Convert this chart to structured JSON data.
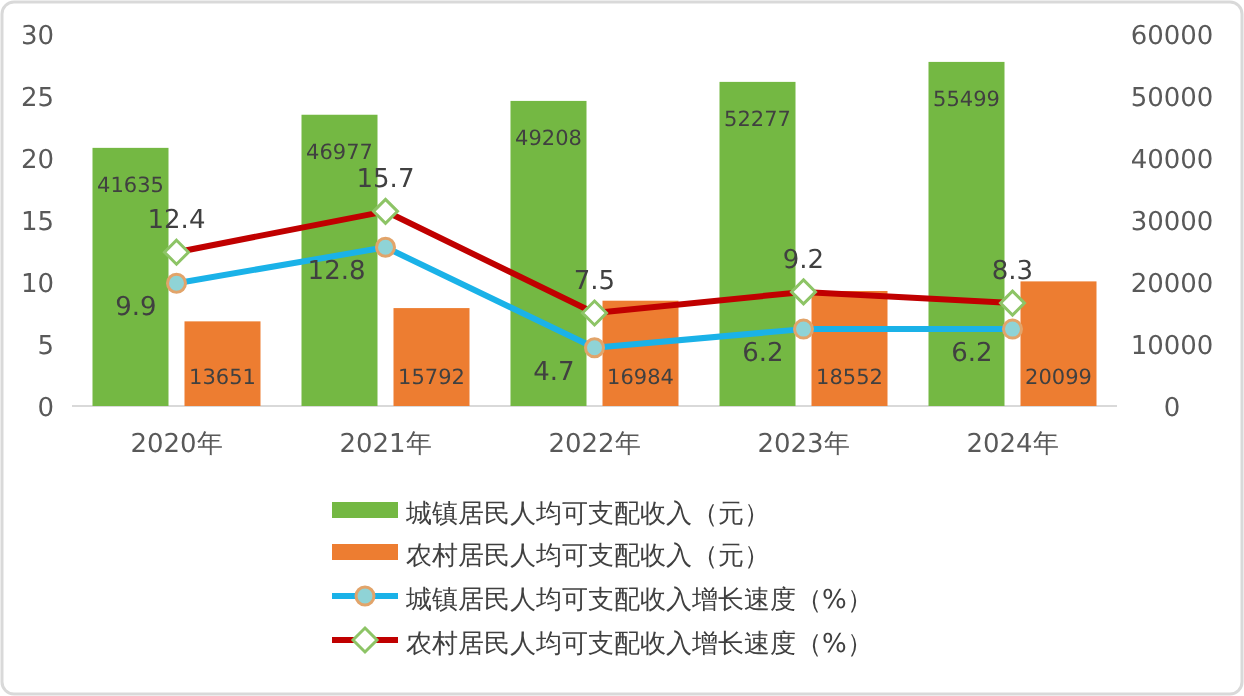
{
  "chart_data": {
    "type": "bar",
    "categories": [
      "2020年",
      "2021年",
      "2022年",
      "2023年",
      "2024年"
    ],
    "series": [
      {
        "name": "城镇居民人均可支配收入（元）",
        "color": "#74b843",
        "values": [
          41635,
          46977,
          49208,
          52277,
          55499
        ],
        "axis": "y2"
      },
      {
        "name": "农村居民人均可支配收入（元）",
        "color": "#ed7d31",
        "values": [
          13651,
          15792,
          16984,
          18552,
          20099
        ],
        "axis": "y2"
      },
      {
        "name": "城镇居民人均可支配收入增长速度（%）",
        "type": "line",
        "color": "#1ab2e8",
        "values": [
          9.9,
          12.8,
          4.7,
          6.2,
          6.2
        ],
        "marker": "circle"
      },
      {
        "name": "农村居民人均可支配收入增长速度（%）",
        "type": "line",
        "color": "#c00000",
        "values": [
          12.4,
          15.7,
          7.5,
          9.2,
          8.3
        ],
        "marker": "diamond"
      }
    ],
    "ylim": [
      0,
      30
    ],
    "yticks": [
      0,
      5,
      10,
      15,
      20,
      25,
      30
    ],
    "y2lim": [
      0,
      60000
    ],
    "y2ticks": [
      0,
      10000,
      20000,
      30000,
      40000,
      50000,
      60000
    ],
    "data_labels": true,
    "legend": "bottom",
    "grid": false
  }
}
